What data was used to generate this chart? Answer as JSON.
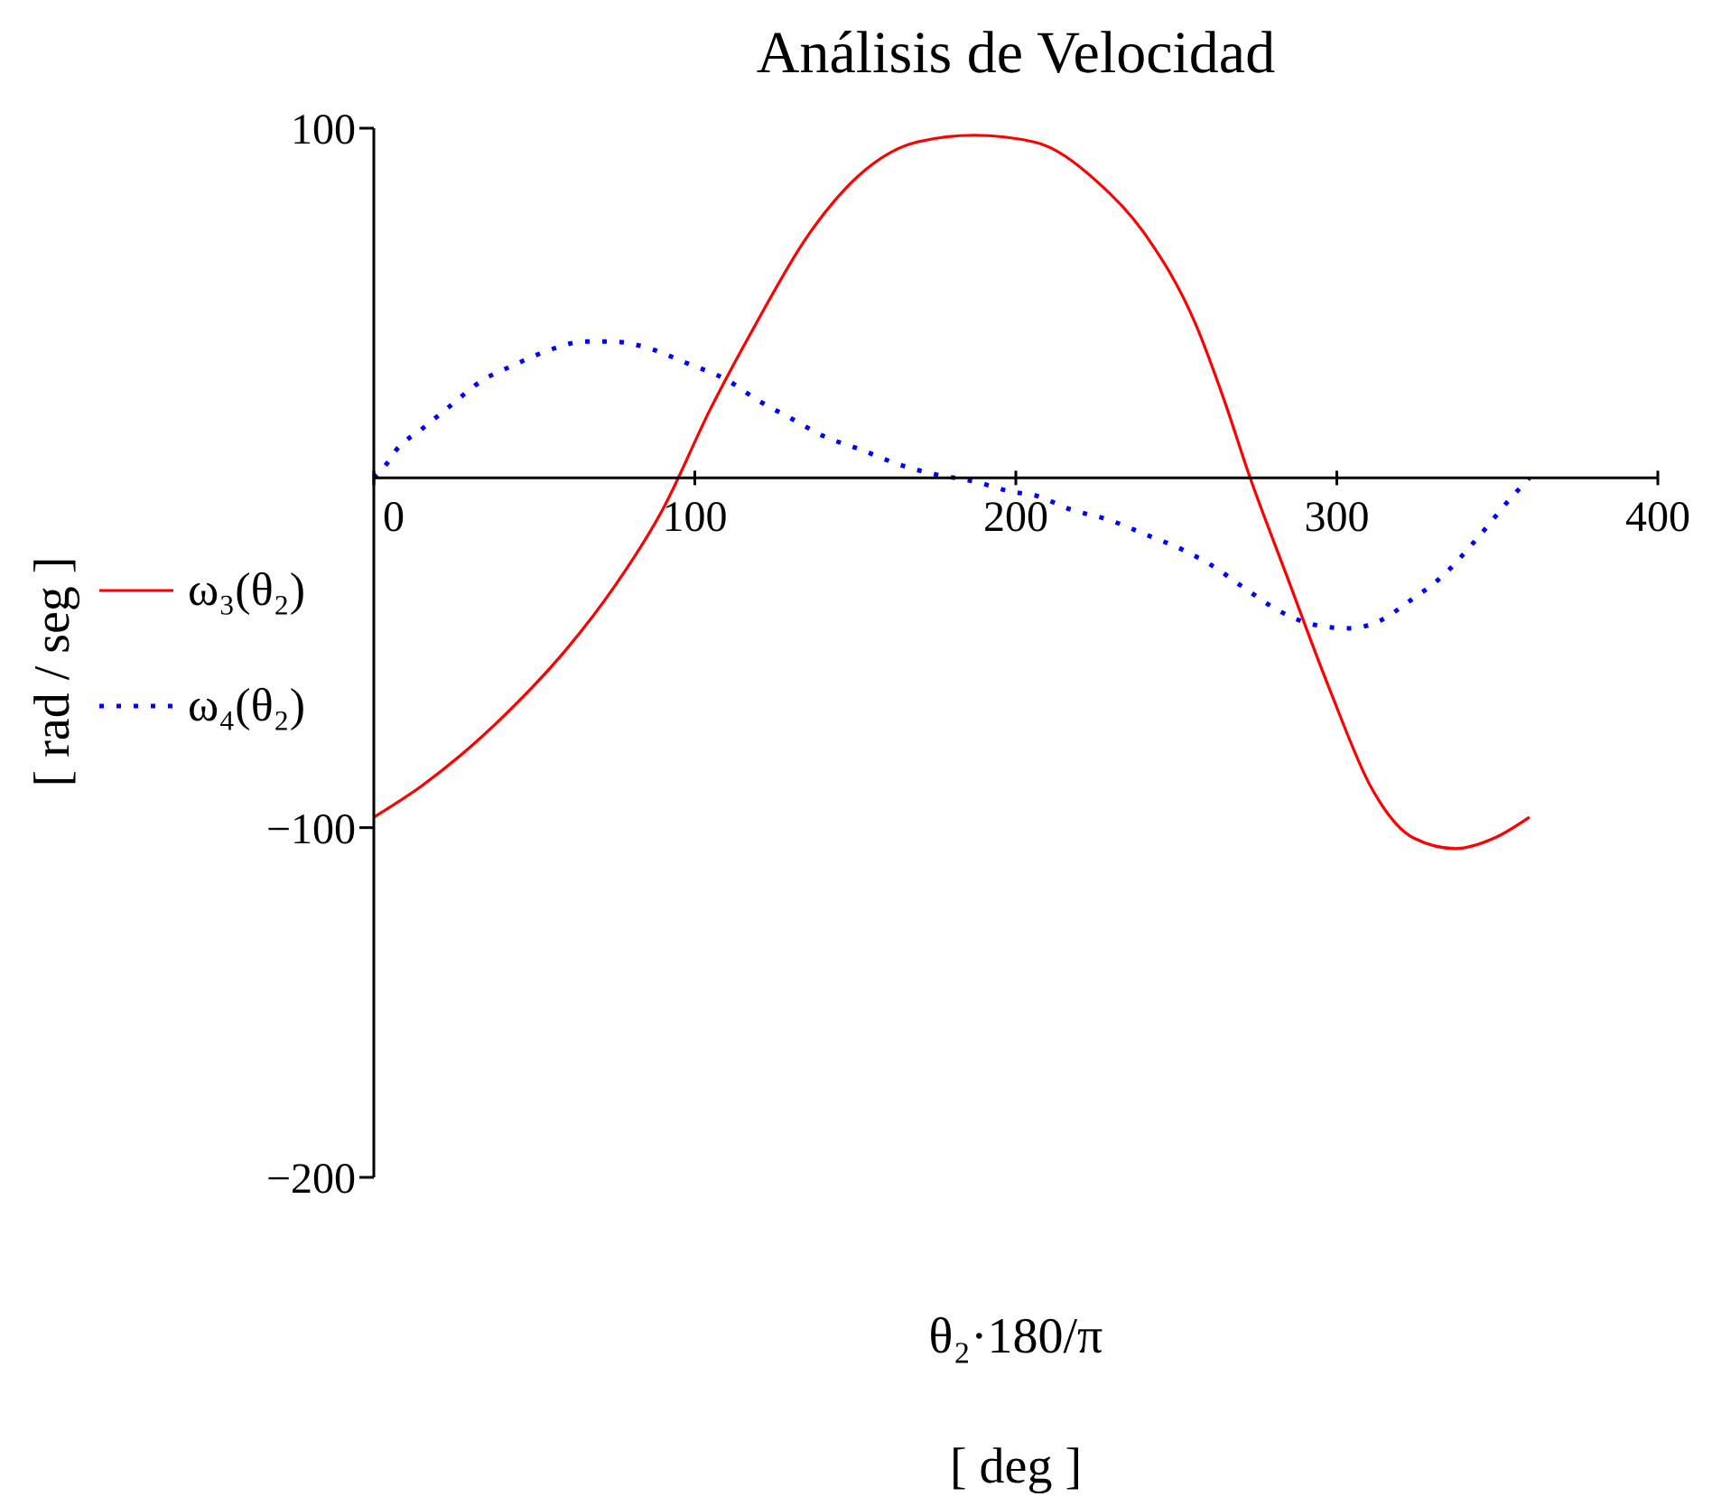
{
  "chart_data": {
    "type": "line",
    "title": "Análisis de Velocidad",
    "xlabel": "θ₂·180/π\n[ deg ]",
    "ylabel": "[ rad / seg ]",
    "series": [
      {
        "name": "ω₃(θ₂)",
        "color": "#ff0000",
        "line_style": "solid",
        "x": [
          0,
          15,
          30,
          45,
          60,
          75,
          90,
          105,
          119,
          135,
          153,
          169,
          187,
          206,
          225,
          240,
          256,
          265,
          273,
          284,
          298,
          311,
          324,
          337,
          349,
          360
        ],
        "values": [
          -97,
          -88,
          -77,
          -64,
          -49,
          -31,
          -9,
          20,
          44,
          69,
          88,
          96,
          98,
          96,
          85,
          70,
          44,
          22,
          0,
          -27,
          -61,
          -89,
          -103,
          -106,
          -103,
          -97
        ]
      },
      {
        "name": "ω₄(θ₂)",
        "color": "#0000ff",
        "line_style": "dotted",
        "x": [
          0,
          4,
          7,
          15,
          23,
          34,
          43,
          53,
          66,
          74,
          86,
          97,
          110,
          120,
          130,
          140,
          152,
          163,
          175,
          187,
          199,
          206,
          217,
          229,
          240,
          253,
          261,
          272,
          282,
          293,
          304,
          313,
          323,
          333,
          344,
          354,
          360
        ],
        "values": [
          0,
          4,
          8,
          14,
          20,
          28,
          32,
          36,
          39,
          39,
          37,
          33,
          28,
          22,
          17,
          12,
          8,
          4,
          1,
          -1,
          -4,
          -5,
          -9,
          -12,
          -16,
          -21,
          -25,
          -32,
          -38,
          -42,
          -43,
          -41,
          -35,
          -28,
          -17,
          -6,
          0
        ]
      }
    ],
    "xlim": [
      0,
      400
    ],
    "xticks": [
      0,
      100,
      200,
      300,
      400
    ],
    "ylim": [
      -200,
      100
    ],
    "yticks": [
      -200,
      -100,
      100
    ],
    "legend": "left"
  }
}
